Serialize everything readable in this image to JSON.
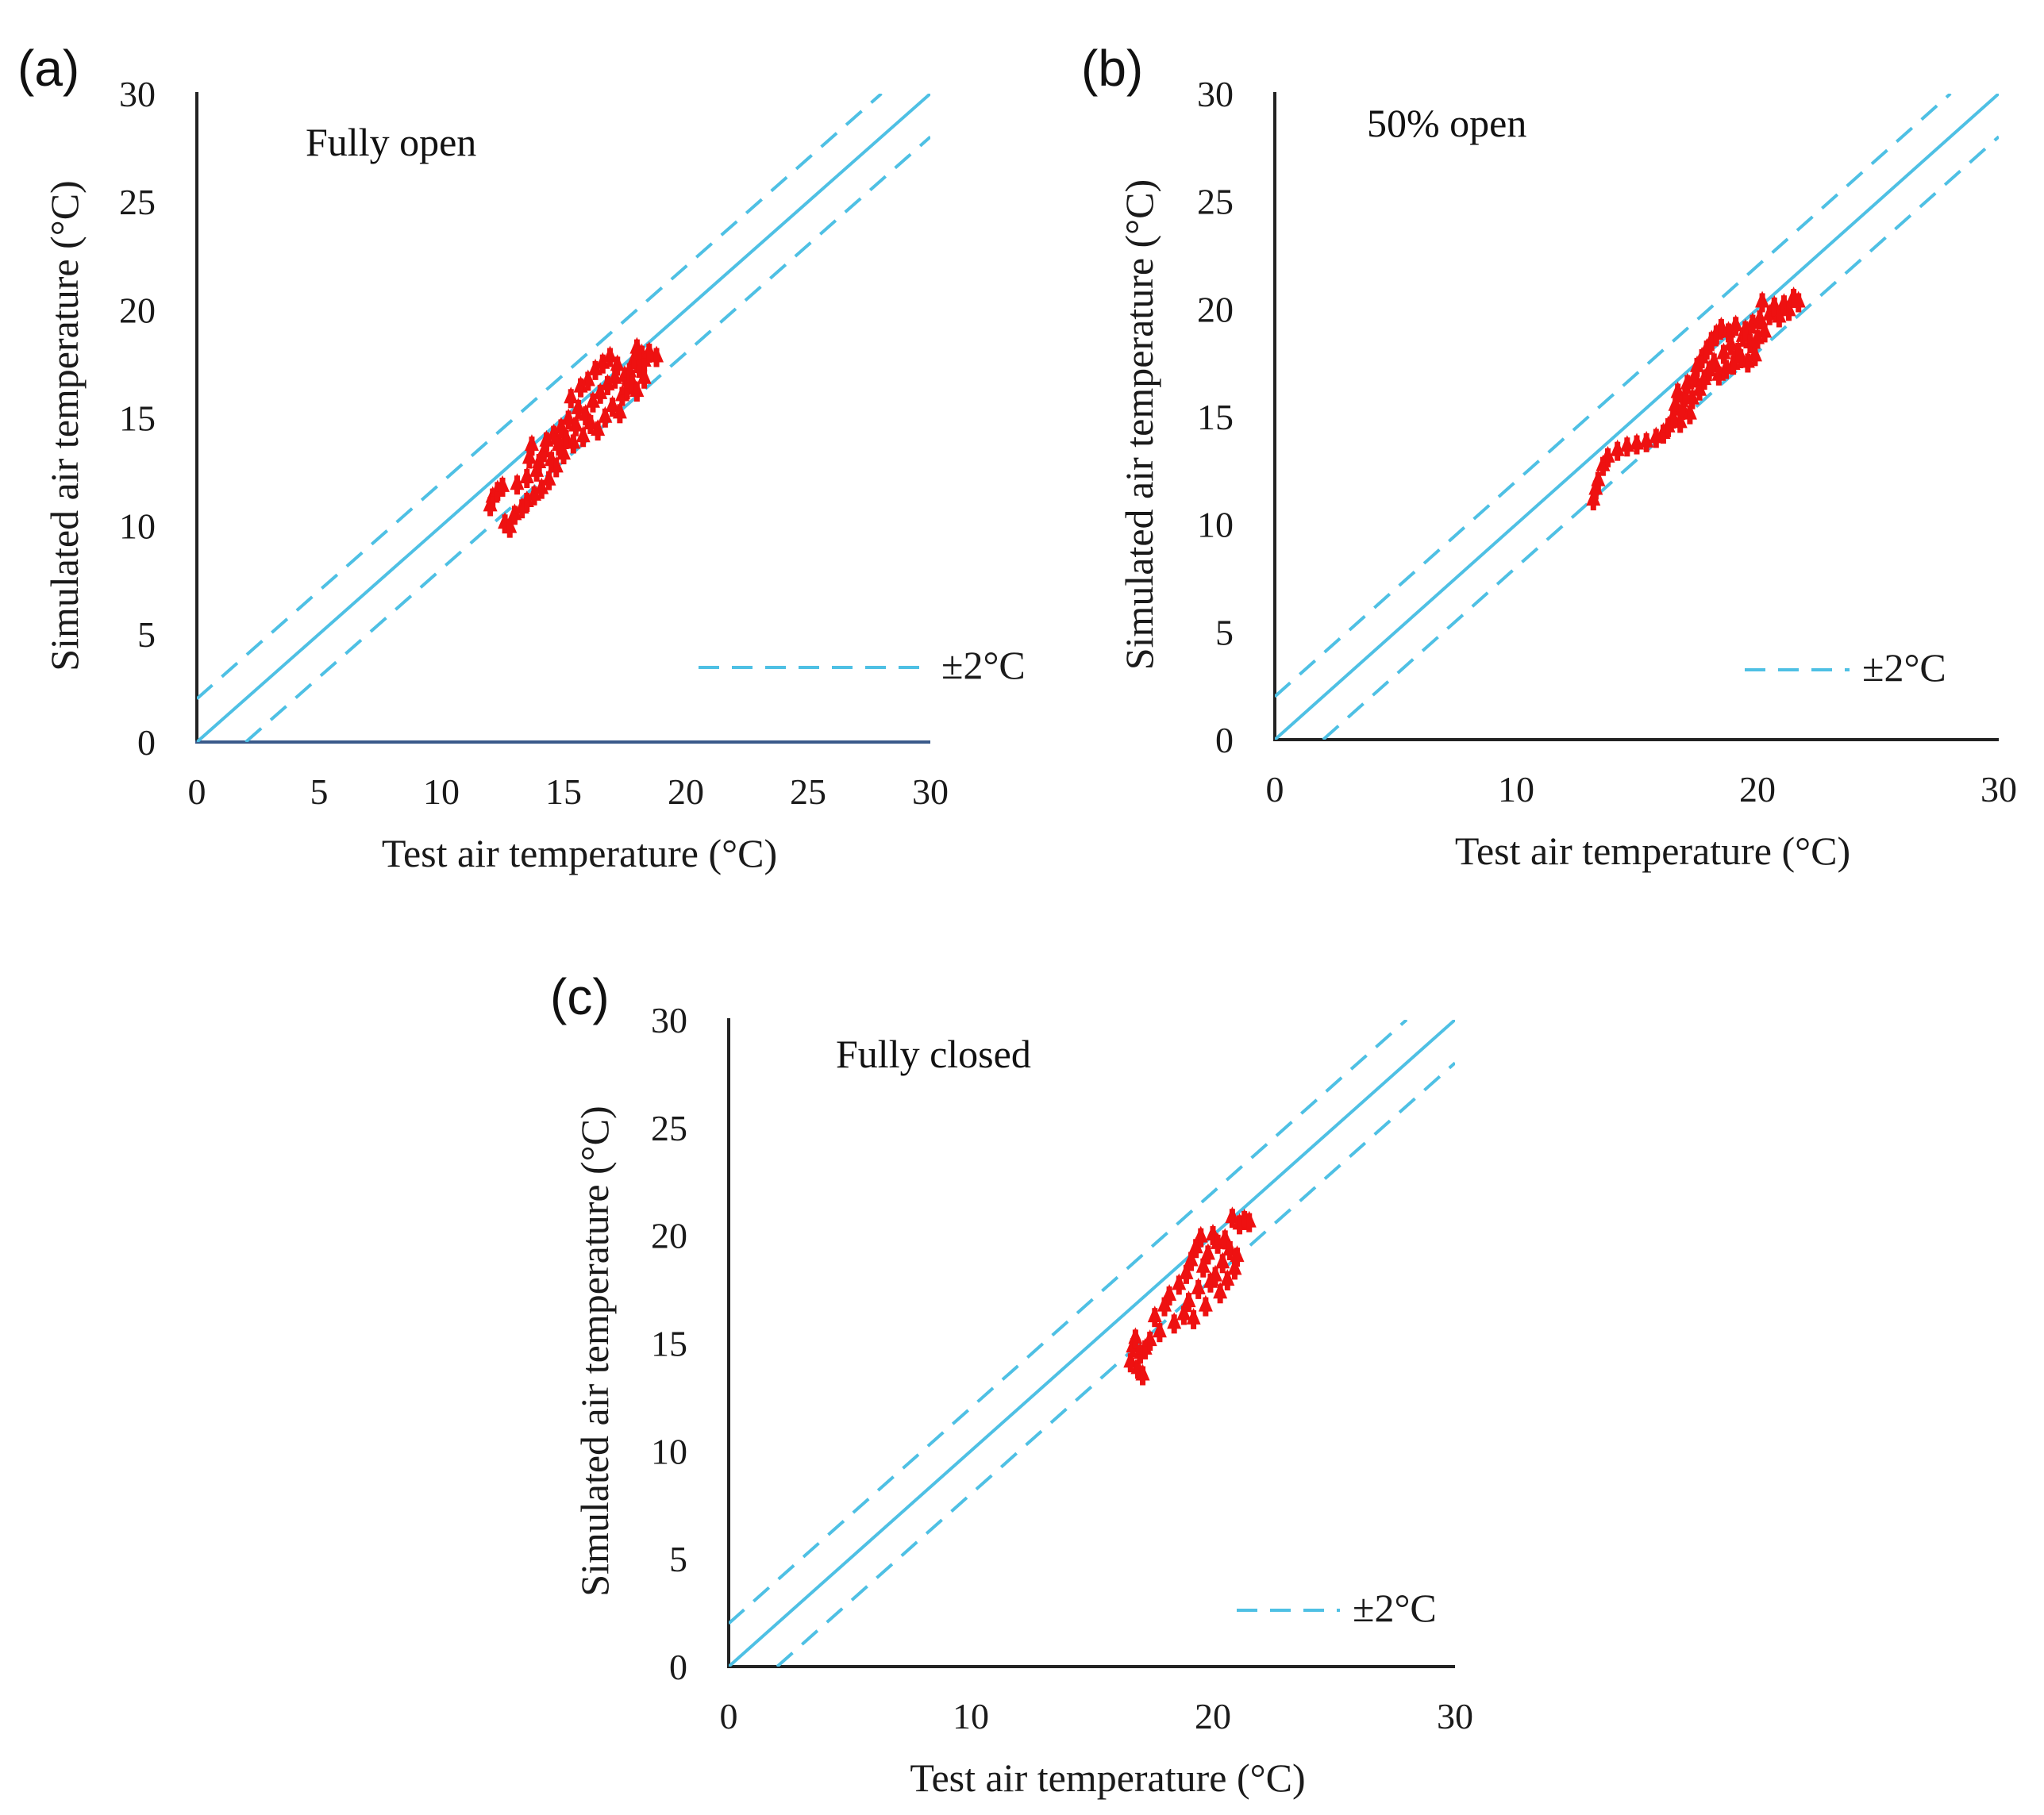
{
  "figure": {
    "colors": {
      "points": "#ee1111",
      "reference_lines": "#4ec0e4",
      "axes": "#222222",
      "x_axis_panel_a": "#3a5a8a"
    }
  },
  "chart_data": [
    {
      "type": "scatter",
      "panel": "(a)",
      "title": "Fully  open",
      "xlabel": "Test air temperature (°C)",
      "ylabel": "Simulated  air  temperature (°C)",
      "xlim": [
        0,
        30
      ],
      "ylim": [
        0,
        30
      ],
      "xticks": [
        "0",
        "5",
        "10",
        "15",
        "20",
        "25",
        "30"
      ],
      "yticks": [
        "0",
        "5",
        "10",
        "15",
        "20",
        "25",
        "30"
      ],
      "legend": {
        "label": "±2°C",
        "position": "bottom-right",
        "style": "dashed"
      },
      "reference_lines": [
        {
          "name": "y = x",
          "style": "solid",
          "offset": 0
        },
        {
          "name": "+2°C",
          "style": "dashed",
          "offset": 2
        },
        {
          "name": "-2°C",
          "style": "dashed",
          "offset": -2
        }
      ],
      "series": [
        {
          "name": "Simulated vs test",
          "marker": "triangle",
          "points": [
            [
              12.0,
              11.0
            ],
            [
              12.1,
              11.4
            ],
            [
              12.3,
              11.7
            ],
            [
              12.5,
              11.9
            ],
            [
              12.6,
              10.2
            ],
            [
              12.8,
              10.0
            ],
            [
              13.0,
              10.6
            ],
            [
              13.1,
              12.0
            ],
            [
              13.3,
              10.9
            ],
            [
              13.5,
              11.2
            ],
            [
              13.5,
              12.3
            ],
            [
              13.6,
              13.2
            ],
            [
              13.7,
              13.8
            ],
            [
              13.8,
              11.5
            ],
            [
              13.9,
              12.6
            ],
            [
              14.0,
              13.0
            ],
            [
              14.1,
              11.8
            ],
            [
              14.2,
              13.5
            ],
            [
              14.3,
              14.0
            ],
            [
              14.4,
              12.2
            ],
            [
              14.5,
              13.1
            ],
            [
              14.6,
              14.3
            ],
            [
              14.7,
              12.8
            ],
            [
              14.8,
              13.8
            ],
            [
              14.9,
              14.6
            ],
            [
              15.0,
              13.4
            ],
            [
              15.1,
              14.1
            ],
            [
              15.2,
              15.0
            ],
            [
              15.3,
              16.0
            ],
            [
              15.4,
              13.9
            ],
            [
              15.5,
              14.7
            ],
            [
              15.6,
              15.5
            ],
            [
              15.7,
              16.5
            ],
            [
              15.8,
              14.2
            ],
            [
              15.9,
              15.2
            ],
            [
              16.0,
              16.8
            ],
            [
              16.1,
              14.8
            ],
            [
              16.2,
              15.8
            ],
            [
              16.3,
              17.3
            ],
            [
              16.4,
              14.5
            ],
            [
              16.5,
              16.2
            ],
            [
              16.6,
              17.6
            ],
            [
              16.7,
              15.1
            ],
            [
              16.8,
              16.6
            ],
            [
              16.9,
              17.9
            ],
            [
              17.0,
              15.6
            ],
            [
              17.1,
              16.9
            ],
            [
              17.2,
              17.5
            ],
            [
              17.3,
              15.3
            ],
            [
              17.4,
              16.1
            ],
            [
              17.5,
              17.0
            ],
            [
              17.6,
              16.4
            ],
            [
              17.7,
              17.2
            ],
            [
              17.8,
              16.7
            ],
            [
              17.9,
              17.8
            ],
            [
              18.0,
              16.3
            ],
            [
              18.0,
              18.3
            ],
            [
              18.1,
              17.4
            ],
            [
              18.2,
              18.0
            ],
            [
              18.3,
              16.9
            ],
            [
              18.3,
              17.7
            ],
            [
              18.5,
              18.1
            ],
            [
              18.8,
              17.9
            ]
          ]
        }
      ]
    },
    {
      "type": "scatter",
      "panel": "(b)",
      "title": "50% open",
      "xlabel": "Test air temperature (°C)",
      "ylabel": "Simulated  air  temperature (°C)",
      "xlim": [
        0,
        30
      ],
      "ylim": [
        0,
        30
      ],
      "xticks": [
        "0",
        "10",
        "20",
        "30"
      ],
      "yticks": [
        "0",
        "5",
        "10",
        "15",
        "20",
        "25",
        "30"
      ],
      "legend": {
        "label": "±2°C",
        "position": "bottom-right",
        "style": "dashed"
      },
      "reference_lines": [
        {
          "name": "y = x",
          "style": "solid",
          "offset": 0
        },
        {
          "name": "+2°C",
          "style": "dashed",
          "offset": 2
        },
        {
          "name": "-2°C",
          "style": "dashed",
          "offset": -2
        }
      ],
      "series": [
        {
          "name": "Simulated vs test",
          "marker": "triangle",
          "points": [
            [
              13.2,
              11.2
            ],
            [
              13.3,
              11.7
            ],
            [
              13.4,
              12.1
            ],
            [
              13.6,
              12.8
            ],
            [
              13.8,
              13.2
            ],
            [
              14.2,
              13.5
            ],
            [
              14.6,
              13.7
            ],
            [
              15.0,
              13.8
            ],
            [
              15.4,
              13.9
            ],
            [
              15.8,
              14.1
            ],
            [
              16.1,
              14.3
            ],
            [
              16.3,
              14.6
            ],
            [
              16.5,
              15.0
            ],
            [
              16.6,
              15.6
            ],
            [
              16.7,
              16.2
            ],
            [
              16.8,
              14.8
            ],
            [
              16.9,
              15.4
            ],
            [
              17.0,
              16.0
            ],
            [
              17.1,
              16.6
            ],
            [
              17.2,
              15.2
            ],
            [
              17.3,
              15.9
            ],
            [
              17.4,
              16.9
            ],
            [
              17.5,
              17.4
            ],
            [
              17.6,
              16.3
            ],
            [
              17.7,
              17.8
            ],
            [
              17.8,
              16.8
            ],
            [
              17.9,
              18.2
            ],
            [
              18.0,
              17.2
            ],
            [
              18.1,
              18.6
            ],
            [
              18.2,
              17.6
            ],
            [
              18.3,
              18.9
            ],
            [
              18.4,
              17.0
            ],
            [
              18.5,
              19.2
            ],
            [
              18.6,
              18.0
            ],
            [
              18.7,
              17.3
            ],
            [
              18.8,
              19.0
            ],
            [
              18.9,
              18.4
            ],
            [
              19.0,
              17.5
            ],
            [
              19.1,
              19.3
            ],
            [
              19.2,
              18.1
            ],
            [
              19.3,
              17.8
            ],
            [
              19.4,
              18.8
            ],
            [
              19.5,
              19.1
            ],
            [
              19.6,
              17.6
            ],
            [
              19.7,
              18.5
            ],
            [
              19.8,
              19.4
            ],
            [
              19.9,
              17.9
            ],
            [
              20.0,
              18.7
            ],
            [
              20.1,
              19.6
            ],
            [
              20.2,
              20.4
            ],
            [
              20.3,
              19.0
            ],
            [
              20.5,
              19.8
            ],
            [
              20.7,
              20.2
            ],
            [
              20.9,
              19.7
            ],
            [
              21.1,
              20.3
            ],
            [
              21.3,
              20.0
            ],
            [
              21.5,
              20.6
            ],
            [
              21.7,
              20.4
            ]
          ]
        }
      ]
    },
    {
      "type": "scatter",
      "panel": "(c)",
      "title": "Fully  closed",
      "xlabel": "Test air temperature (°C)",
      "ylabel": "Simulated  air  temperature (°C)",
      "xlim": [
        0,
        30
      ],
      "ylim": [
        0,
        30
      ],
      "xticks": [
        "0",
        "10",
        "20",
        "30"
      ],
      "yticks": [
        "0",
        "5",
        "10",
        "15",
        "20",
        "25",
        "30"
      ],
      "legend": {
        "label": "±2°C",
        "position": "bottom-right",
        "style": "dashed"
      },
      "reference_lines": [
        {
          "name": "y = x",
          "style": "solid",
          "offset": 0
        },
        {
          "name": "+2°C",
          "style": "dashed",
          "offset": 2
        },
        {
          "name": "-2°C",
          "style": "dashed",
          "offset": -2
        }
      ],
      "series": [
        {
          "name": "Simulated vs test",
          "marker": "triangle",
          "points": [
            [
              16.6,
              14.2
            ],
            [
              16.7,
              14.9
            ],
            [
              16.8,
              15.3
            ],
            [
              16.9,
              13.9
            ],
            [
              17.0,
              14.6
            ],
            [
              17.1,
              13.6
            ],
            [
              17.2,
              14.8
            ],
            [
              17.4,
              15.2
            ],
            [
              17.6,
              16.3
            ],
            [
              17.8,
              15.6
            ],
            [
              18.0,
              16.8
            ],
            [
              18.2,
              17.3
            ],
            [
              18.4,
              16.0
            ],
            [
              18.6,
              17.8
            ],
            [
              18.8,
              16.4
            ],
            [
              18.9,
              18.3
            ],
            [
              19.0,
              17.0
            ],
            [
              19.1,
              18.9
            ],
            [
              19.2,
              16.2
            ],
            [
              19.3,
              19.5
            ],
            [
              19.4,
              17.6
            ],
            [
              19.5,
              20.0
            ],
            [
              19.6,
              18.6
            ],
            [
              19.7,
              16.8
            ],
            [
              19.8,
              19.2
            ],
            [
              19.9,
              17.9
            ],
            [
              20.0,
              20.1
            ],
            [
              20.1,
              18.2
            ],
            [
              20.2,
              19.7
            ],
            [
              20.3,
              17.4
            ],
            [
              20.4,
              18.8
            ],
            [
              20.5,
              19.9
            ],
            [
              20.6,
              18.0
            ],
            [
              20.7,
              19.4
            ],
            [
              20.8,
              20.9
            ],
            [
              20.9,
              18.5
            ],
            [
              21.0,
              19.1
            ],
            [
              21.1,
              20.6
            ],
            [
              21.3,
              20.8
            ],
            [
              21.5,
              20.7
            ]
          ]
        }
      ]
    }
  ]
}
